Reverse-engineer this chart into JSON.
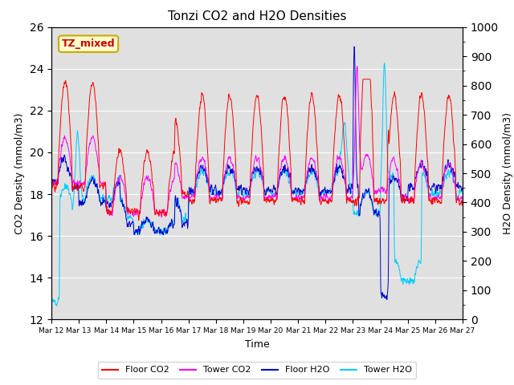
{
  "title": "Tonzi CO2 and H2O Densities",
  "xlabel": "Time",
  "ylabel_left": "CO2 Density (mmol/m3)",
  "ylabel_right": "H2O Density (mmol/m3)",
  "annotation": "TZ_mixed",
  "ylim_left": [
    12,
    26
  ],
  "ylim_right": [
    0,
    1000
  ],
  "yticks_left": [
    12,
    14,
    16,
    18,
    20,
    22,
    24,
    26
  ],
  "yticks_right": [
    0,
    100,
    200,
    300,
    400,
    500,
    600,
    700,
    800,
    900,
    1000
  ],
  "xtick_labels": [
    "Mar 12",
    "Mar 13",
    "Mar 14",
    "Mar 15",
    "Mar 16",
    "Mar 17",
    "Mar 18",
    "Mar 19",
    "Mar 20",
    "Mar 21",
    "Mar 22",
    "Mar 23",
    "Mar 24",
    "Mar 25",
    "Mar 26",
    "Mar 27"
  ],
  "colors": {
    "floor_co2": "#FF0000",
    "tower_co2": "#FF00FF",
    "floor_h2o": "#0000CC",
    "tower_h2o": "#00CCFF"
  },
  "legend_labels": [
    "Floor CO2",
    "Tower CO2",
    "Floor H2O",
    "Tower H2O"
  ],
  "plot_bg": "#E0E0E0",
  "annotation_box": {
    "facecolor": "#FFFFCC",
    "edgecolor": "#CCAA00",
    "text_color": "#CC0000"
  },
  "n_points": 3600,
  "figsize": [
    6.4,
    4.8
  ],
  "dpi": 100
}
